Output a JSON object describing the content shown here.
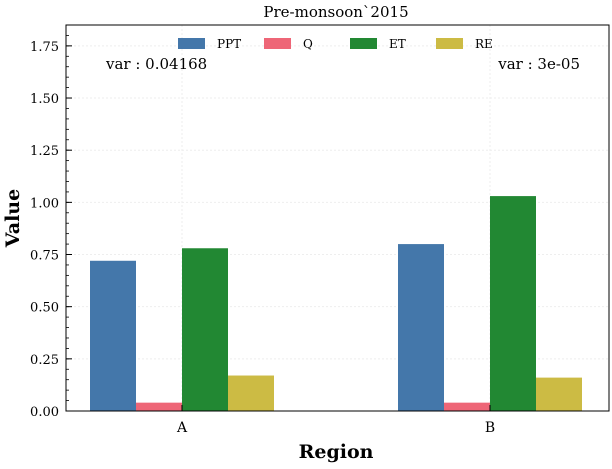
{
  "chart_data": {
    "type": "bar",
    "title": "Pre-monsoon`2015",
    "xlabel": "Region",
    "ylabel": "Value",
    "categories": [
      "A",
      "B"
    ],
    "series": [
      {
        "name": "PPT",
        "color": "#4477aa",
        "values": [
          0.72,
          0.8
        ]
      },
      {
        "name": "Q",
        "color": "#ee6677",
        "values": [
          0.04,
          0.04
        ]
      },
      {
        "name": "ET",
        "color": "#228833",
        "values": [
          0.78,
          1.03
        ]
      },
      {
        "name": "RE",
        "color": "#ccbb44",
        "values": [
          0.17,
          0.16
        ]
      }
    ],
    "ylim": [
      0,
      1.85
    ],
    "yticks": [
      "0.00",
      "0.25",
      "0.50",
      "0.75",
      "1.00",
      "1.25",
      "1.50",
      "1.75"
    ],
    "grid": true,
    "legend_position": "top-center",
    "annotations": [
      {
        "text": "var : 0.04168",
        "anchor": "top-left"
      },
      {
        "text": "var : 3e-05",
        "anchor": "top-right"
      }
    ]
  }
}
